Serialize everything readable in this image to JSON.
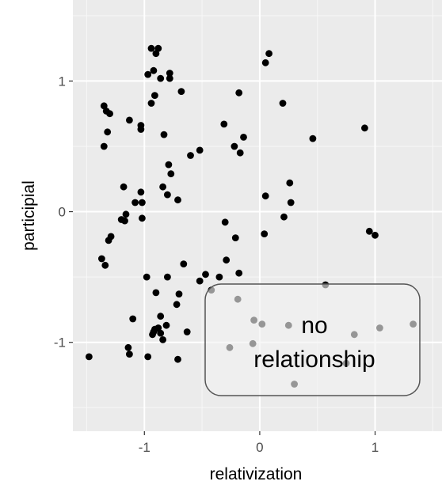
{
  "chart_data": {
    "type": "scatter",
    "xlabel": "relativization",
    "ylabel": "participial",
    "xlim": [
      -1.62,
      1.58
    ],
    "ylim": [
      -1.68,
      1.62
    ],
    "xticks": [
      -1,
      0,
      1
    ],
    "yticks": [
      -1,
      0,
      1
    ],
    "xtick_labels": [
      "-1",
      "0",
      "1"
    ],
    "ytick_labels": [
      "-1",
      "0",
      "1"
    ],
    "grid": true,
    "background": "#ebebeb",
    "point_color": "#000000",
    "points": [
      [
        -0.94,
        1.25
      ],
      [
        -0.88,
        1.25
      ],
      [
        -0.9,
        1.21
      ],
      [
        -0.92,
        1.08
      ],
      [
        -0.97,
        1.05
      ],
      [
        -0.86,
        1.02
      ],
      [
        -0.78,
        1.06
      ],
      [
        -0.78,
        1.02
      ],
      [
        -0.91,
        0.89
      ],
      [
        -0.94,
        0.83
      ],
      [
        -0.68,
        0.92
      ],
      [
        -1.35,
        0.81
      ],
      [
        -1.33,
        0.77
      ],
      [
        -1.3,
        0.75
      ],
      [
        -1.13,
        0.7
      ],
      [
        -1.03,
        0.66
      ],
      [
        -1.03,
        0.63
      ],
      [
        -1.32,
        0.61
      ],
      [
        -0.83,
        0.59
      ],
      [
        -1.35,
        0.5
      ],
      [
        -0.6,
        0.43
      ],
      [
        -0.52,
        0.47
      ],
      [
        -0.79,
        0.36
      ],
      [
        -0.77,
        0.29
      ],
      [
        -0.84,
        0.19
      ],
      [
        -0.8,
        0.13
      ],
      [
        -0.71,
        0.09
      ],
      [
        -1.18,
        0.19
      ],
      [
        -1.03,
        0.15
      ],
      [
        -1.08,
        0.07
      ],
      [
        -1.02,
        0.07
      ],
      [
        -1.02,
        -0.05
      ],
      [
        -1.16,
        -0.02
      ],
      [
        -1.2,
        -0.06
      ],
      [
        -1.17,
        -0.07
      ],
      [
        -1.29,
        -0.19
      ],
      [
        -1.31,
        -0.22
      ],
      [
        -1.37,
        -0.36
      ],
      [
        -1.34,
        -0.41
      ],
      [
        -0.66,
        -0.4
      ],
      [
        -0.52,
        -0.53
      ],
      [
        -0.47,
        -0.48
      ],
      [
        -0.98,
        -0.5
      ],
      [
        -0.8,
        -0.5
      ],
      [
        -0.9,
        -0.62
      ],
      [
        -0.7,
        -0.63
      ],
      [
        -0.86,
        -0.8
      ],
      [
        -0.72,
        -0.71
      ],
      [
        -1.1,
        -0.82
      ],
      [
        -0.91,
        -0.9
      ],
      [
        -0.86,
        -0.93
      ],
      [
        -0.88,
        -0.89
      ],
      [
        -0.81,
        -0.87
      ],
      [
        -0.84,
        -0.98
      ],
      [
        -0.93,
        -0.94
      ],
      [
        -0.63,
        -0.92
      ],
      [
        -1.14,
        -1.04
      ],
      [
        -1.13,
        -1.09
      ],
      [
        -0.97,
        -1.11
      ],
      [
        -0.71,
        -1.13
      ],
      [
        -1.48,
        -1.11
      ],
      [
        -0.92,
        -0.92
      ],
      [
        0.08,
        1.21
      ],
      [
        0.05,
        1.14
      ],
      [
        0.2,
        0.83
      ],
      [
        0.46,
        0.56
      ],
      [
        -0.18,
        0.91
      ],
      [
        -0.31,
        0.67
      ],
      [
        -0.14,
        0.57
      ],
      [
        -0.22,
        0.5
      ],
      [
        -0.17,
        0.45
      ],
      [
        0.26,
        0.22
      ],
      [
        0.05,
        0.12
      ],
      [
        0.27,
        0.07
      ],
      [
        0.21,
        -0.04
      ],
      [
        -0.3,
        -0.08
      ],
      [
        0.04,
        -0.17
      ],
      [
        -0.21,
        -0.2
      ],
      [
        -0.29,
        -0.37
      ],
      [
        -0.18,
        -0.47
      ],
      [
        -0.35,
        -0.5
      ],
      [
        0.91,
        0.64
      ],
      [
        0.95,
        -0.15
      ],
      [
        1.0,
        -0.18
      ],
      [
        -0.42,
        -0.6
      ],
      [
        -0.19,
        -0.67
      ],
      [
        0.57,
        -0.56
      ],
      [
        -0.05,
        -0.83
      ],
      [
        0.02,
        -0.86
      ],
      [
        0.25,
        -0.87
      ],
      [
        0.82,
        -0.94
      ],
      [
        1.04,
        -0.89
      ],
      [
        1.33,
        -0.86
      ],
      [
        0.75,
        -1.16
      ],
      [
        -0.26,
        -1.04
      ],
      [
        -0.06,
        -1.01
      ],
      [
        0.3,
        -1.32
      ]
    ],
    "annotation": "no relationship",
    "annotation_lines": [
      "no",
      "relationship"
    ]
  }
}
